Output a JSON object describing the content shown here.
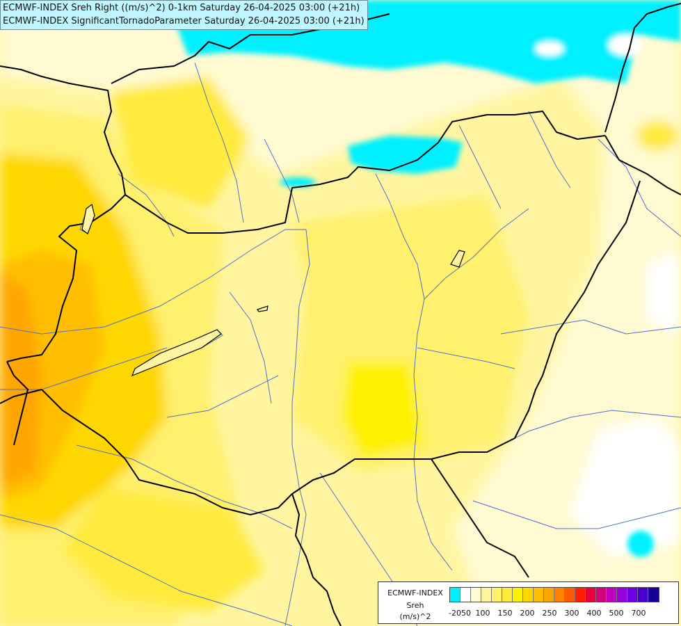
{
  "title": {
    "line1": "ECMWF-INDEX Sreh Right ((m/s)^2) 0-1km Saturday 26-04-2025 03:00 (+21h)",
    "line2": "ECMWF-INDEX SignificantTornadoParameter Saturday 26-04-2025 03:00 (+21h)"
  },
  "legend": {
    "source": "ECMWF-INDEX",
    "parameter": "Sreh",
    "unit": "(m/s)^2",
    "colors": [
      "#00f0ff",
      "#ffffff",
      "#fffad2",
      "#fff5a0",
      "#fff06e",
      "#ffea3c",
      "#fff000",
      "#ffd700",
      "#ffbe00",
      "#ffa500",
      "#ff8200",
      "#ff5a00",
      "#ff1e00",
      "#e6003c",
      "#d2007d",
      "#be00be",
      "#9600dc",
      "#6e00e6",
      "#4600d2",
      "#140096"
    ],
    "ticks": [
      {
        "label": "-20",
        "index": 0.5
      },
      {
        "label": "50",
        "index": 1.5
      },
      {
        "label": "100",
        "index": 3
      },
      {
        "label": "150",
        "index": 5
      },
      {
        "label": "200",
        "index": 7
      },
      {
        "label": "250",
        "index": 9
      },
      {
        "label": "300",
        "index": 11
      },
      {
        "label": "400",
        "index": 13
      },
      {
        "label": "500",
        "index": 15
      },
      {
        "label": "700",
        "index": 17
      }
    ]
  },
  "map_colors": {
    "cyan": "#00f0ff",
    "white": "#ffffff",
    "pale": "#fffad2",
    "light": "#fff5a0",
    "yellow": "#fff06e",
    "deep_yellow": "#ffea3c",
    "strong_yellow": "#fff000",
    "gold": "#ffd700",
    "amber": "#ffbe00",
    "orange": "#ffa500",
    "border": "#000000",
    "river": "#5070c8"
  }
}
